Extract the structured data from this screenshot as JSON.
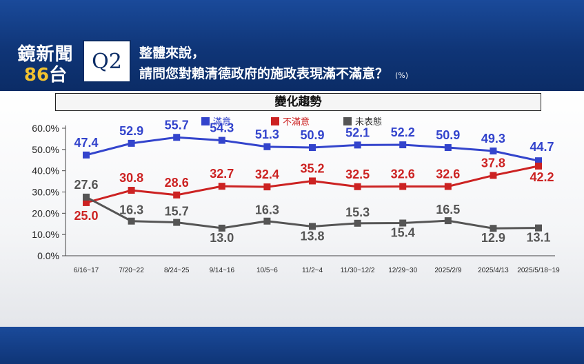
{
  "header": {
    "brand_name": "鏡新聞",
    "brand_channel_num": "86",
    "brand_channel_suffix": "台",
    "question_label": "Q2",
    "question_line1": "整體來說，",
    "question_line2": "請問您對賴清德政府的施政表現滿不滿意？",
    "unit": "(%)"
  },
  "chart_data": {
    "type": "line",
    "title": "變化趨勢",
    "categories": [
      "6/16~17",
      "7/20~22",
      "8/24~25",
      "9/14~16",
      "10/5~6",
      "11/2~4",
      "11/30~12/2",
      "12/29~30",
      "2025/2/9",
      "2025/4/13",
      "2025/5/18~19"
    ],
    "y_ticks": [
      "60.0%",
      "50.0%",
      "40.0%",
      "30.0%",
      "20.0%",
      "10.0%",
      "0.0%"
    ],
    "ylim": [
      0,
      60
    ],
    "series": [
      {
        "name": "滿意",
        "color": "#3344cc",
        "values": [
          47.4,
          52.9,
          55.7,
          54.3,
          51.3,
          50.9,
          52.1,
          52.2,
          50.9,
          49.3,
          44.7
        ]
      },
      {
        "name": "不滿意",
        "color": "#cc2222",
        "values": [
          25.0,
          30.8,
          28.6,
          32.7,
          32.4,
          35.2,
          32.5,
          32.6,
          32.6,
          37.8,
          42.2
        ]
      },
      {
        "name": "未表態",
        "color": "#555555",
        "values": [
          27.6,
          16.3,
          15.7,
          13.0,
          16.3,
          13.8,
          15.3,
          15.4,
          16.5,
          12.9,
          13.1
        ]
      }
    ],
    "labels": {
      "滿意": [
        "47.4",
        "52.9",
        "55.7",
        "54.3",
        "51.3",
        "50.9",
        "52.1",
        "52.2",
        "50.9",
        "49.3",
        "44.7"
      ],
      "不滿意": [
        "25.0",
        "30.8",
        "28.6",
        "32.7",
        "32.4",
        "35.2",
        "32.5",
        "32.6",
        "32.6",
        "37.8",
        "42.2"
      ],
      "未表態": [
        "27.6",
        "16.3",
        "15.7",
        "13.0",
        "16.3",
        "13.8",
        "15.3",
        "15.4",
        "16.5",
        "12.9",
        "13.1"
      ]
    },
    "legend": [
      "滿意",
      "不滿意",
      "未表態"
    ]
  }
}
